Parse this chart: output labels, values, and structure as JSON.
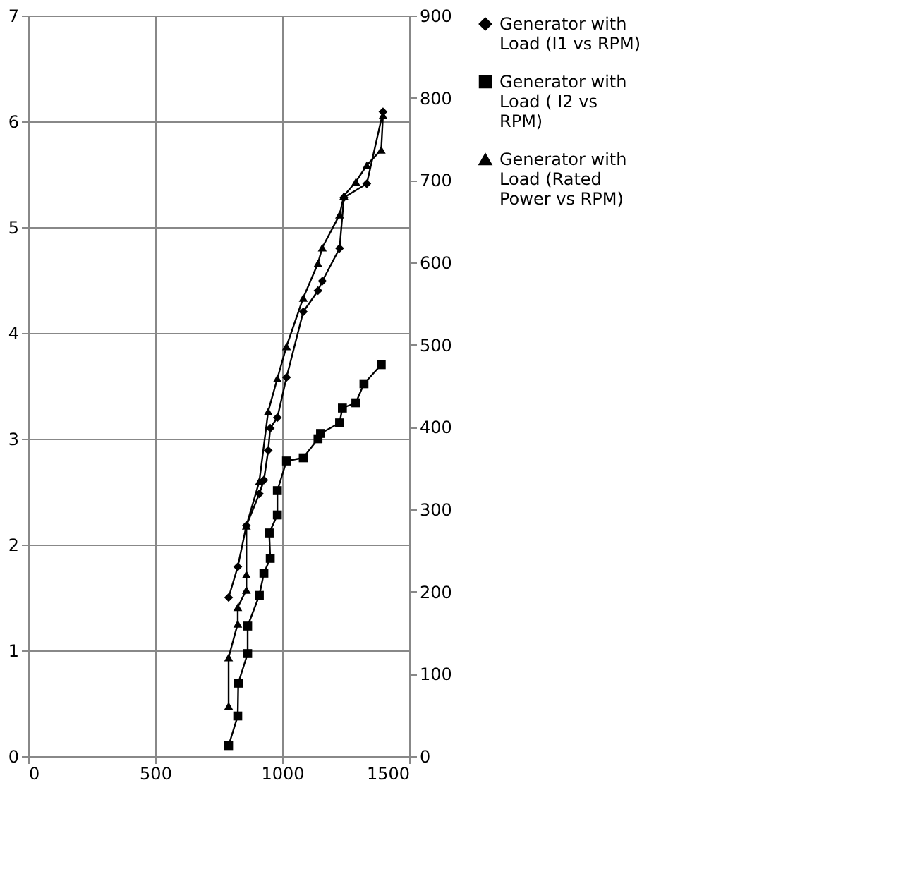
{
  "chart_data": {
    "type": "line",
    "xlim": [
      0,
      1500
    ],
    "xticks": [
      0,
      500,
      1000,
      1500
    ],
    "ylim": [
      0,
      7
    ],
    "yticks": [
      0,
      1,
      2,
      3,
      4,
      5,
      6,
      7
    ],
    "y2lim": [
      0,
      900
    ],
    "y2ticks": [
      0,
      100,
      200,
      300,
      400,
      500,
      600,
      700,
      800,
      900
    ],
    "grid": true,
    "legend": "right",
    "line_style": "solid",
    "series": [
      {
        "name": "Generator with Load (I1 vs RPM)",
        "color": "#000000",
        "marker": "diamond",
        "x": [
          789,
          825,
          859,
          910,
          928,
          945,
          953,
          981,
          1017,
          1083,
          1141,
          1158,
          1226,
          1243,
          1333,
          1397
        ],
        "values": [
          1.5,
          1.79,
          2.18,
          2.48,
          2.61,
          2.89,
          3.1,
          3.2,
          3.58,
          4.2,
          4.4,
          4.49,
          4.8,
          5.28,
          5.41,
          6.09
        ]
      },
      {
        "name": "Generator with Load ( I2 vs RPM)",
        "color": "#000000",
        "marker": "square",
        "x": [
          789,
          825,
          827,
          864,
          864,
          910,
          928,
          953,
          949,
          981,
          981,
          1017,
          1083,
          1141,
          1151,
          1226,
          1237,
          1290,
          1322,
          1390
        ],
        "values": [
          0.1,
          0.38,
          0.69,
          0.97,
          1.23,
          1.52,
          1.73,
          1.87,
          2.11,
          2.28,
          2.51,
          2.79,
          2.82,
          3.0,
          3.05,
          3.15,
          3.29,
          3.34,
          3.52,
          3.7
        ]
      },
      {
        "name": "Generator with Load (Rated Power vs RPM)",
        "color": "#000000",
        "marker": "triangle",
        "axis": "y2",
        "x": [
          789,
          789,
          825,
          825,
          859,
          859,
          859,
          910,
          945,
          981,
          1017,
          1083,
          1141,
          1158,
          1226,
          1243,
          1290,
          1333,
          1390,
          1397
        ],
        "values": [
          61,
          120,
          161,
          181,
          202,
          221,
          280,
          334,
          419,
          459,
          498,
          557,
          599,
          618,
          658,
          681,
          698,
          718,
          737,
          779
        ]
      }
    ]
  }
}
